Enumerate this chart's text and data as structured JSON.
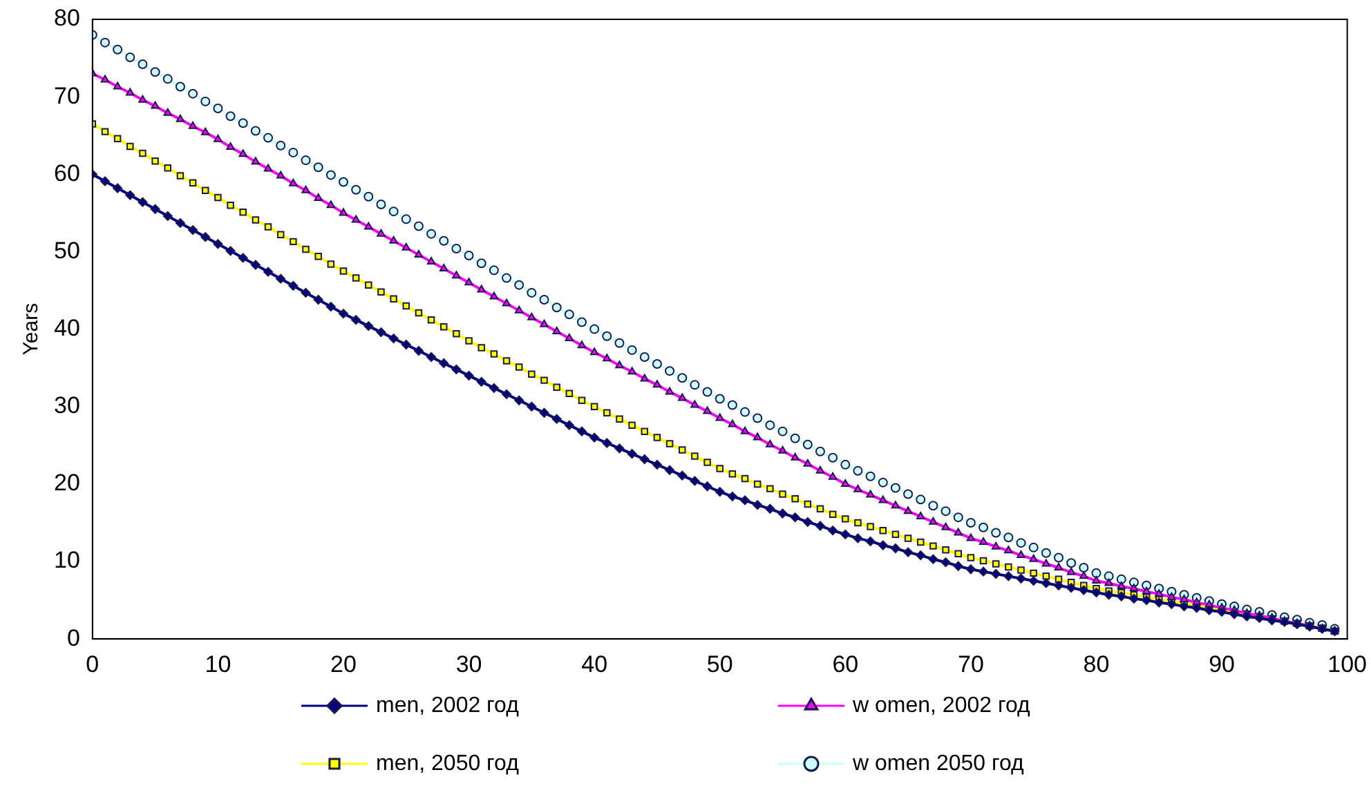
{
  "chart_data": {
    "type": "line",
    "ylabel": "Years",
    "xlim": [
      0,
      100
    ],
    "xticks": [
      0,
      10,
      20,
      30,
      40,
      50,
      60,
      70,
      80,
      90,
      100
    ],
    "ylim": [
      0,
      80
    ],
    "yticks": [
      0,
      10,
      20,
      30,
      40,
      50,
      60,
      70,
      80
    ],
    "grid": false,
    "legend": "bottom",
    "line_style": "solid",
    "x": [
      0,
      1,
      2,
      3,
      4,
      5,
      6,
      7,
      8,
      9,
      10,
      11,
      12,
      13,
      14,
      15,
      16,
      17,
      18,
      19,
      20,
      21,
      22,
      23,
      24,
      25,
      26,
      27,
      28,
      29,
      30,
      31,
      32,
      33,
      34,
      35,
      36,
      37,
      38,
      39,
      40,
      41,
      42,
      43,
      44,
      45,
      46,
      47,
      48,
      49,
      50,
      51,
      52,
      53,
      54,
      55,
      56,
      57,
      58,
      59,
      60,
      61,
      62,
      63,
      64,
      65,
      66,
      67,
      68,
      69,
      70,
      71,
      72,
      73,
      74,
      75,
      76,
      77,
      78,
      79,
      80,
      81,
      82,
      83,
      84,
      85,
      86,
      87,
      88,
      89,
      90,
      91,
      92,
      93,
      94,
      95,
      96,
      97,
      98,
      99
    ],
    "series": [
      {
        "name": "men, 2002 год",
        "color": "#000080",
        "marker": "diamond",
        "values": [
          60,
          59.1,
          58.2,
          57.3,
          56.4,
          55.5,
          54.6,
          53.7,
          52.8,
          51.9,
          51,
          50.1,
          49.2,
          48.3,
          47.4,
          46.5,
          45.6,
          44.7,
          43.8,
          42.9,
          42,
          41.2,
          40.4,
          39.6,
          38.8,
          38,
          37.2,
          36.4,
          35.6,
          34.8,
          34,
          33.2,
          32.4,
          31.6,
          30.8,
          30,
          29.2,
          28.4,
          27.6,
          26.8,
          26,
          25.3,
          24.6,
          23.9,
          23.2,
          22.5,
          21.8,
          21.1,
          20.4,
          19.7,
          19,
          18.4,
          17.9,
          17.3,
          16.8,
          16.2,
          15.7,
          15.1,
          14.6,
          14,
          13.5,
          13,
          12.6,
          12.1,
          11.7,
          11.2,
          10.8,
          10.3,
          9.9,
          9.4,
          9,
          8.7,
          8.4,
          8.1,
          7.8,
          7.5,
          7.2,
          6.9,
          6.6,
          6.3,
          6,
          5.7,
          5.5,
          5.2,
          5,
          4.7,
          4.5,
          4.2,
          4,
          3.7,
          3.5,
          3.2,
          2.9,
          2.7,
          2.4,
          2.2,
          1.9,
          1.6,
          1.3,
          1
        ]
      },
      {
        "name": "w omen, 2002 год",
        "color": "#ff00ff",
        "marker": "triangle",
        "values": [
          73,
          72.2,
          71.3,
          70.5,
          69.6,
          68.8,
          67.9,
          67.1,
          66.2,
          65.4,
          64.5,
          63.5,
          62.6,
          61.6,
          60.7,
          59.8,
          58.8,
          57.9,
          56.9,
          56,
          55,
          54.1,
          53.2,
          52.3,
          51.4,
          50.5,
          49.6,
          48.7,
          47.8,
          46.9,
          46,
          45.1,
          44.2,
          43.3,
          42.4,
          41.5,
          40.6,
          39.7,
          38.8,
          37.9,
          37,
          36.2,
          35.3,
          34.5,
          33.6,
          32.8,
          31.9,
          31.1,
          30.2,
          29.4,
          28.5,
          27.7,
          26.8,
          26,
          25.1,
          24.3,
          23.4,
          22.6,
          21.7,
          20.9,
          20,
          19.3,
          18.6,
          17.9,
          17.2,
          16.5,
          15.8,
          15.1,
          14.4,
          13.7,
          13,
          12.5,
          11.9,
          11.4,
          10.8,
          10.3,
          9.7,
          9.2,
          8.6,
          8.1,
          7.5,
          7.2,
          6.8,
          6.5,
          6.1,
          5.8,
          5.4,
          5.1,
          4.7,
          4.4,
          4,
          3.7,
          3.3,
          3,
          2.7,
          2.3,
          2,
          1.7,
          1.3,
          1
        ]
      },
      {
        "name": "men, 2050 год",
        "color": "#ffff00",
        "marker": "square",
        "values": [
          66.5,
          65.5,
          64.6,
          63.6,
          62.7,
          61.7,
          60.8,
          59.8,
          58.9,
          57.9,
          57,
          56,
          55.1,
          54.1,
          53.2,
          52.2,
          51.3,
          50.3,
          49.4,
          48.4,
          47.5,
          46.6,
          45.7,
          44.8,
          43.9,
          43,
          42.1,
          41.2,
          40.3,
          39.4,
          38.5,
          37.6,
          36.8,
          35.9,
          35.1,
          34.2,
          33.4,
          32.5,
          31.7,
          30.8,
          30,
          29.2,
          28.4,
          27.6,
          26.8,
          26,
          25.2,
          24.4,
          23.6,
          22.8,
          22,
          21.3,
          20.7,
          20,
          19.4,
          18.7,
          18.1,
          17.4,
          16.8,
          16.1,
          15.5,
          15,
          14.5,
          14,
          13.5,
          13,
          12.5,
          12,
          11.5,
          11,
          10.5,
          10.1,
          9.7,
          9.3,
          8.9,
          8.5,
          8.1,
          7.7,
          7.3,
          6.9,
          6.5,
          6.2,
          6,
          5.7,
          5.4,
          5.1,
          4.9,
          4.6,
          4.3,
          4.1,
          3.8,
          3.5,
          3.2,
          2.9,
          2.6,
          2.3,
          2,
          1.7,
          1.4,
          1
        ]
      },
      {
        "name": "w omen 2050 год",
        "color": "#ccffff",
        "marker": "circle",
        "values": [
          78,
          77,
          76.1,
          75.1,
          74.2,
          73.2,
          72.3,
          71.3,
          70.4,
          69.4,
          68.5,
          67.5,
          66.6,
          65.6,
          64.7,
          63.7,
          62.8,
          61.8,
          60.9,
          59.9,
          59,
          58,
          57.1,
          56.1,
          55.2,
          54.2,
          53.3,
          52.3,
          51.4,
          50.4,
          49.5,
          48.5,
          47.6,
          46.6,
          45.7,
          44.7,
          43.8,
          42.8,
          41.9,
          40.9,
          40,
          39.1,
          38.2,
          37.3,
          36.4,
          35.5,
          34.6,
          33.7,
          32.8,
          31.9,
          31,
          30.2,
          29.3,
          28.5,
          27.6,
          26.8,
          25.9,
          25.1,
          24.2,
          23.4,
          22.5,
          21.7,
          21,
          20.2,
          19.5,
          18.7,
          18,
          17.2,
          16.5,
          15.7,
          15,
          14.4,
          13.7,
          13.1,
          12.4,
          11.8,
          11.1,
          10.5,
          9.8,
          9.2,
          8.5,
          8.1,
          7.7,
          7.3,
          6.9,
          6.5,
          6.1,
          5.7,
          5.3,
          4.9,
          4.5,
          4.2,
          3.8,
          3.5,
          3.1,
          2.8,
          2.5,
          2.1,
          1.8,
          1.3
        ]
      }
    ]
  }
}
